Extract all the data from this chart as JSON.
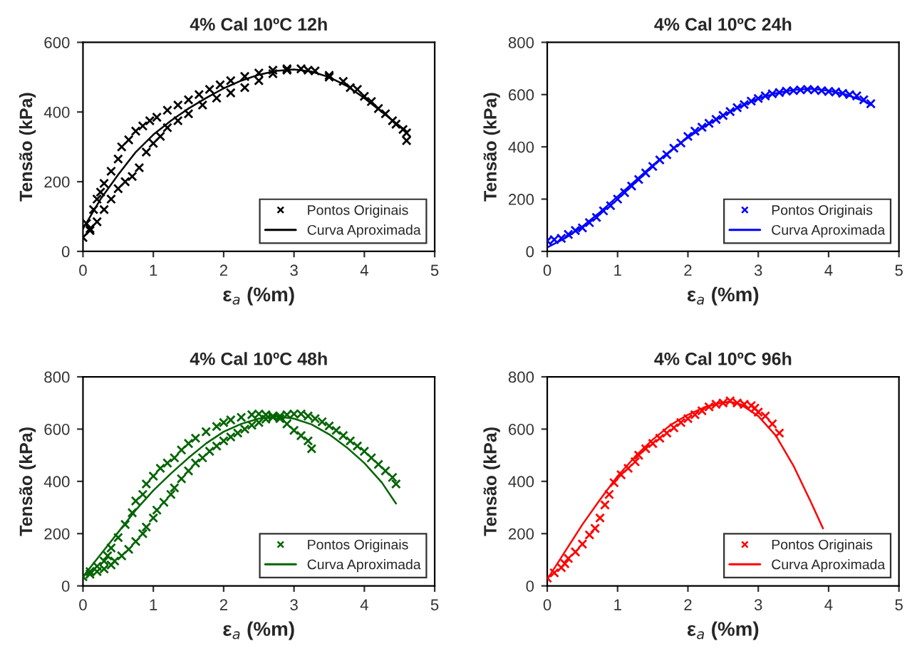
{
  "chart_data": [
    {
      "type": "scatter",
      "title": "4% Cal 10ºC 12h",
      "xlabel": "ε$_{a}$ (%m)",
      "ylabel": "Tensão (kPa)",
      "xlim": [
        0,
        5
      ],
      "xticks": [
        0,
        1,
        2,
        3,
        4,
        5
      ],
      "ylim": [
        0,
        600
      ],
      "yticks": [
        0,
        200,
        400,
        600
      ],
      "grid": false,
      "legend": "bottom right",
      "series": [
        {
          "name": "Pontos Originais",
          "type": "scatter",
          "marker": "cross",
          "color": "#000000",
          "x": [
            0,
            0.05,
            0.1,
            0.15,
            0.2,
            0.25,
            0.3,
            0.4,
            0.5,
            0.55,
            0.65,
            0.75,
            0.85,
            0.95,
            1.05,
            1.2,
            1.35,
            1.5,
            1.65,
            1.8,
            1.95,
            2.1,
            2.3,
            2.5,
            2.7,
            2.9,
            3.1,
            3.3,
            3.5,
            3.7,
            3.9,
            4.1,
            4.3,
            4.45,
            4.6,
            4.6,
            0.1,
            0.2,
            0.3,
            0.4,
            0.5,
            0.6,
            0.7,
            0.8,
            0.9,
            1.0,
            1.1,
            1.2,
            1.35,
            1.5,
            1.7,
            1.9,
            2.1,
            2.3,
            2.5,
            2.7,
            2.9,
            3.2,
            3.5,
            3.8,
            4.0,
            4.2,
            4.4,
            4.55
          ],
          "values": [
            40,
            80,
            65,
            120,
            150,
            170,
            195,
            230,
            265,
            300,
            320,
            345,
            360,
            375,
            385,
            405,
            420,
            435,
            450,
            465,
            478,
            490,
            502,
            512,
            520,
            524,
            524,
            518,
            505,
            488,
            465,
            430,
            395,
            365,
            340,
            318,
            60,
            85,
            120,
            150,
            180,
            200,
            215,
            240,
            285,
            310,
            330,
            355,
            375,
            395,
            420,
            440,
            455,
            470,
            490,
            510,
            520,
            520,
            500,
            470,
            445,
            410,
            375,
            350
          ]
        },
        {
          "name": "Curva Aproximada",
          "type": "line",
          "color": "#000000",
          "x": [
            0,
            0.25,
            0.5,
            0.75,
            1.0,
            1.25,
            1.5,
            1.75,
            2.0,
            2.25,
            2.5,
            2.75,
            3.0,
            3.25,
            3.5,
            3.75,
            4.0,
            4.25,
            4.5,
            4.6
          ],
          "values": [
            65,
            150,
            220,
            285,
            335,
            375,
            410,
            440,
            468,
            490,
            507,
            518,
            522,
            516,
            500,
            475,
            440,
            400,
            360,
            345
          ]
        }
      ]
    },
    {
      "type": "scatter",
      "title": "4% Cal 10ºC 24h",
      "xlabel": "ε$_{a}$ (%m)",
      "ylabel": "Tensão (kPa)",
      "xlim": [
        0,
        5
      ],
      "xticks": [
        0,
        1,
        2,
        3,
        4,
        5
      ],
      "ylim": [
        0,
        800
      ],
      "yticks": [
        0,
        200,
        400,
        600,
        800
      ],
      "grid": false,
      "legend": "bottom right",
      "series": [
        {
          "name": "Pontos Originais",
          "type": "scatter",
          "marker": "cross",
          "color": "#0000ff",
          "x": [
            0,
            0.05,
            0.1,
            0.2,
            0.3,
            0.4,
            0.5,
            0.6,
            0.7,
            0.8,
            0.9,
            1.0,
            1.1,
            1.2,
            1.3,
            1.4,
            1.5,
            1.6,
            1.7,
            1.8,
            1.9,
            2.0,
            2.1,
            2.2,
            2.3,
            2.4,
            2.5,
            2.6,
            2.7,
            2.8,
            2.9,
            3.0,
            3.1,
            3.2,
            3.3,
            3.4,
            3.5,
            3.6,
            3.7,
            3.8,
            3.9,
            4.0,
            4.1,
            4.2,
            4.3,
            4.4,
            4.5,
            4.6
          ],
          "values": [
            40,
            null,
            45,
            50,
            65,
            80,
            90,
            110,
            130,
            155,
            175,
            200,
            225,
            250,
            275,
            300,
            325,
            350,
            370,
            395,
            415,
            440,
            460,
            475,
            490,
            505,
            520,
            535,
            550,
            562,
            575,
            585,
            595,
            603,
            608,
            613,
            615,
            618,
            620,
            618,
            615,
            612,
            610,
            605,
            600,
            595,
            580,
            565
          ]
        },
        {
          "name": "Curva Aproximada",
          "type": "line",
          "color": "#0000ff",
          "x": [
            0,
            0.25,
            0.5,
            0.75,
            1.0,
            1.25,
            1.5,
            1.75,
            2.0,
            2.25,
            2.5,
            2.75,
            3.0,
            3.25,
            3.5,
            3.75,
            4.0,
            4.25,
            4.5,
            4.6
          ],
          "values": [
            15,
            50,
            95,
            150,
            210,
            270,
            330,
            385,
            435,
            480,
            520,
            555,
            585,
            605,
            618,
            622,
            615,
            600,
            575,
            560
          ]
        }
      ]
    },
    {
      "type": "scatter",
      "title": "4% Cal 10ºC 48h",
      "xlabel": "ε$_{a}$ (%m)",
      "ylabel": "Tensão (kPa)",
      "xlim": [
        0,
        5
      ],
      "xticks": [
        0,
        1,
        2,
        3,
        4,
        5
      ],
      "ylim": [
        0,
        800
      ],
      "yticks": [
        0,
        200,
        400,
        600,
        800
      ],
      "grid": false,
      "legend": "bottom right",
      "series": [
        {
          "name": "Pontos Originais",
          "type": "scatter",
          "marker": "cross",
          "color": "#006400",
          "x": [
            0,
            0.1,
            0.2,
            0.3,
            0.35,
            0.4,
            0.5,
            0.6,
            0.7,
            0.75,
            0.85,
            0.9,
            1.0,
            1.1,
            1.2,
            1.3,
            1.4,
            1.5,
            1.6,
            1.75,
            1.9,
            2.0,
            2.1,
            2.25,
            2.4,
            2.5,
            2.6,
            2.7,
            2.8,
            2.9,
            3.0,
            3.1,
            3.2,
            3.25,
            0.1,
            0.2,
            0.3,
            0.4,
            0.45,
            0.55,
            0.65,
            0.75,
            0.85,
            0.9,
            1.0,
            1.05,
            1.15,
            1.25,
            1.3,
            1.4,
            1.5,
            1.6,
            1.7,
            1.8,
            1.9,
            2.0,
            2.1,
            2.2,
            2.3,
            2.4,
            2.5,
            2.6,
            2.7,
            2.8,
            2.9,
            3.0,
            3.1,
            3.2,
            3.3,
            3.4,
            3.5,
            3.6,
            3.7,
            3.8,
            3.9,
            4.0,
            4.1,
            4.2,
            4.3,
            4.4,
            4.45
          ],
          "values": [
            35,
            55,
            75,
            95,
            115,
            145,
            185,
            235,
            280,
            325,
            350,
            390,
            420,
            450,
            470,
            490,
            520,
            545,
            565,
            590,
            610,
            625,
            635,
            645,
            655,
            658,
            655,
            650,
            640,
            620,
            595,
            575,
            555,
            525,
            45,
            55,
            65,
            80,
            95,
            115,
            140,
            170,
            200,
            225,
            260,
            290,
            320,
            350,
            375,
            410,
            440,
            470,
            490,
            515,
            535,
            555,
            570,
            585,
            600,
            615,
            625,
            638,
            645,
            650,
            655,
            658,
            658,
            650,
            640,
            628,
            612,
            595,
            575,
            555,
            535,
            515,
            490,
            465,
            440,
            415,
            390
          ]
        },
        {
          "name": "Curva Aproximada",
          "type": "line",
          "color": "#006400",
          "x": [
            0,
            0.25,
            0.5,
            0.75,
            1.0,
            1.25,
            1.5,
            1.75,
            2.0,
            2.25,
            2.5,
            2.75,
            3.0,
            3.25,
            3.5,
            3.75,
            4.0,
            4.25,
            4.45
          ],
          "values": [
            35,
            120,
            205,
            290,
            365,
            430,
            490,
            545,
            590,
            620,
            640,
            648,
            640,
            618,
            580,
            530,
            470,
            395,
            315
          ]
        }
      ]
    },
    {
      "type": "scatter",
      "title": "4% Cal 10ºC 96h",
      "xlabel": "ε$_{a}$ (%m)",
      "ylabel": "Tensão (kPa)",
      "xlim": [
        0,
        5
      ],
      "xticks": [
        0,
        1,
        2,
        3,
        4,
        5
      ],
      "ylim": [
        0,
        800
      ],
      "yticks": [
        0,
        200,
        400,
        600,
        800
      ],
      "grid": false,
      "legend": "bottom right",
      "series": [
        {
          "name": "Pontos Originais",
          "type": "scatter",
          "marker": "cross",
          "color": "#ff0000",
          "x": [
            0,
            0.1,
            0.2,
            0.25,
            0.3,
            0.4,
            0.5,
            0.6,
            0.68,
            0.75,
            0.82,
            0.88,
            0.95,
            1.05,
            1.15,
            1.25,
            1.3,
            1.4,
            1.5,
            1.6,
            1.7,
            1.8,
            1.9,
            2.0,
            2.1,
            2.2,
            2.3,
            2.4,
            2.5,
            2.6,
            2.7,
            2.8,
            2.9,
            2.95,
            3.0,
            3.1,
            3.2,
            3.3
          ],
          "values": [
            30,
            50,
            70,
            85,
            105,
            130,
            160,
            195,
            220,
            260,
            310,
            350,
            395,
            425,
            450,
            475,
            500,
            525,
            545,
            565,
            585,
            605,
            625,
            640,
            655,
            670,
            685,
            695,
            700,
            708,
            700,
            695,
            690,
            680,
            665,
            650,
            620,
            585
          ]
        },
        {
          "name": "Curva Aproximada",
          "type": "line",
          "color": "#ff0000",
          "x": [
            0,
            0.25,
            0.5,
            0.75,
            1.0,
            1.25,
            1.5,
            1.75,
            2.0,
            2.25,
            2.5,
            2.6,
            2.75,
            3.0,
            3.25,
            3.5,
            3.75,
            3.92
          ],
          "values": [
            25,
            130,
            235,
            330,
            420,
            495,
            560,
            615,
            655,
            685,
            702,
            705,
            695,
            650,
            575,
            460,
            320,
            220
          ]
        }
      ]
    }
  ]
}
